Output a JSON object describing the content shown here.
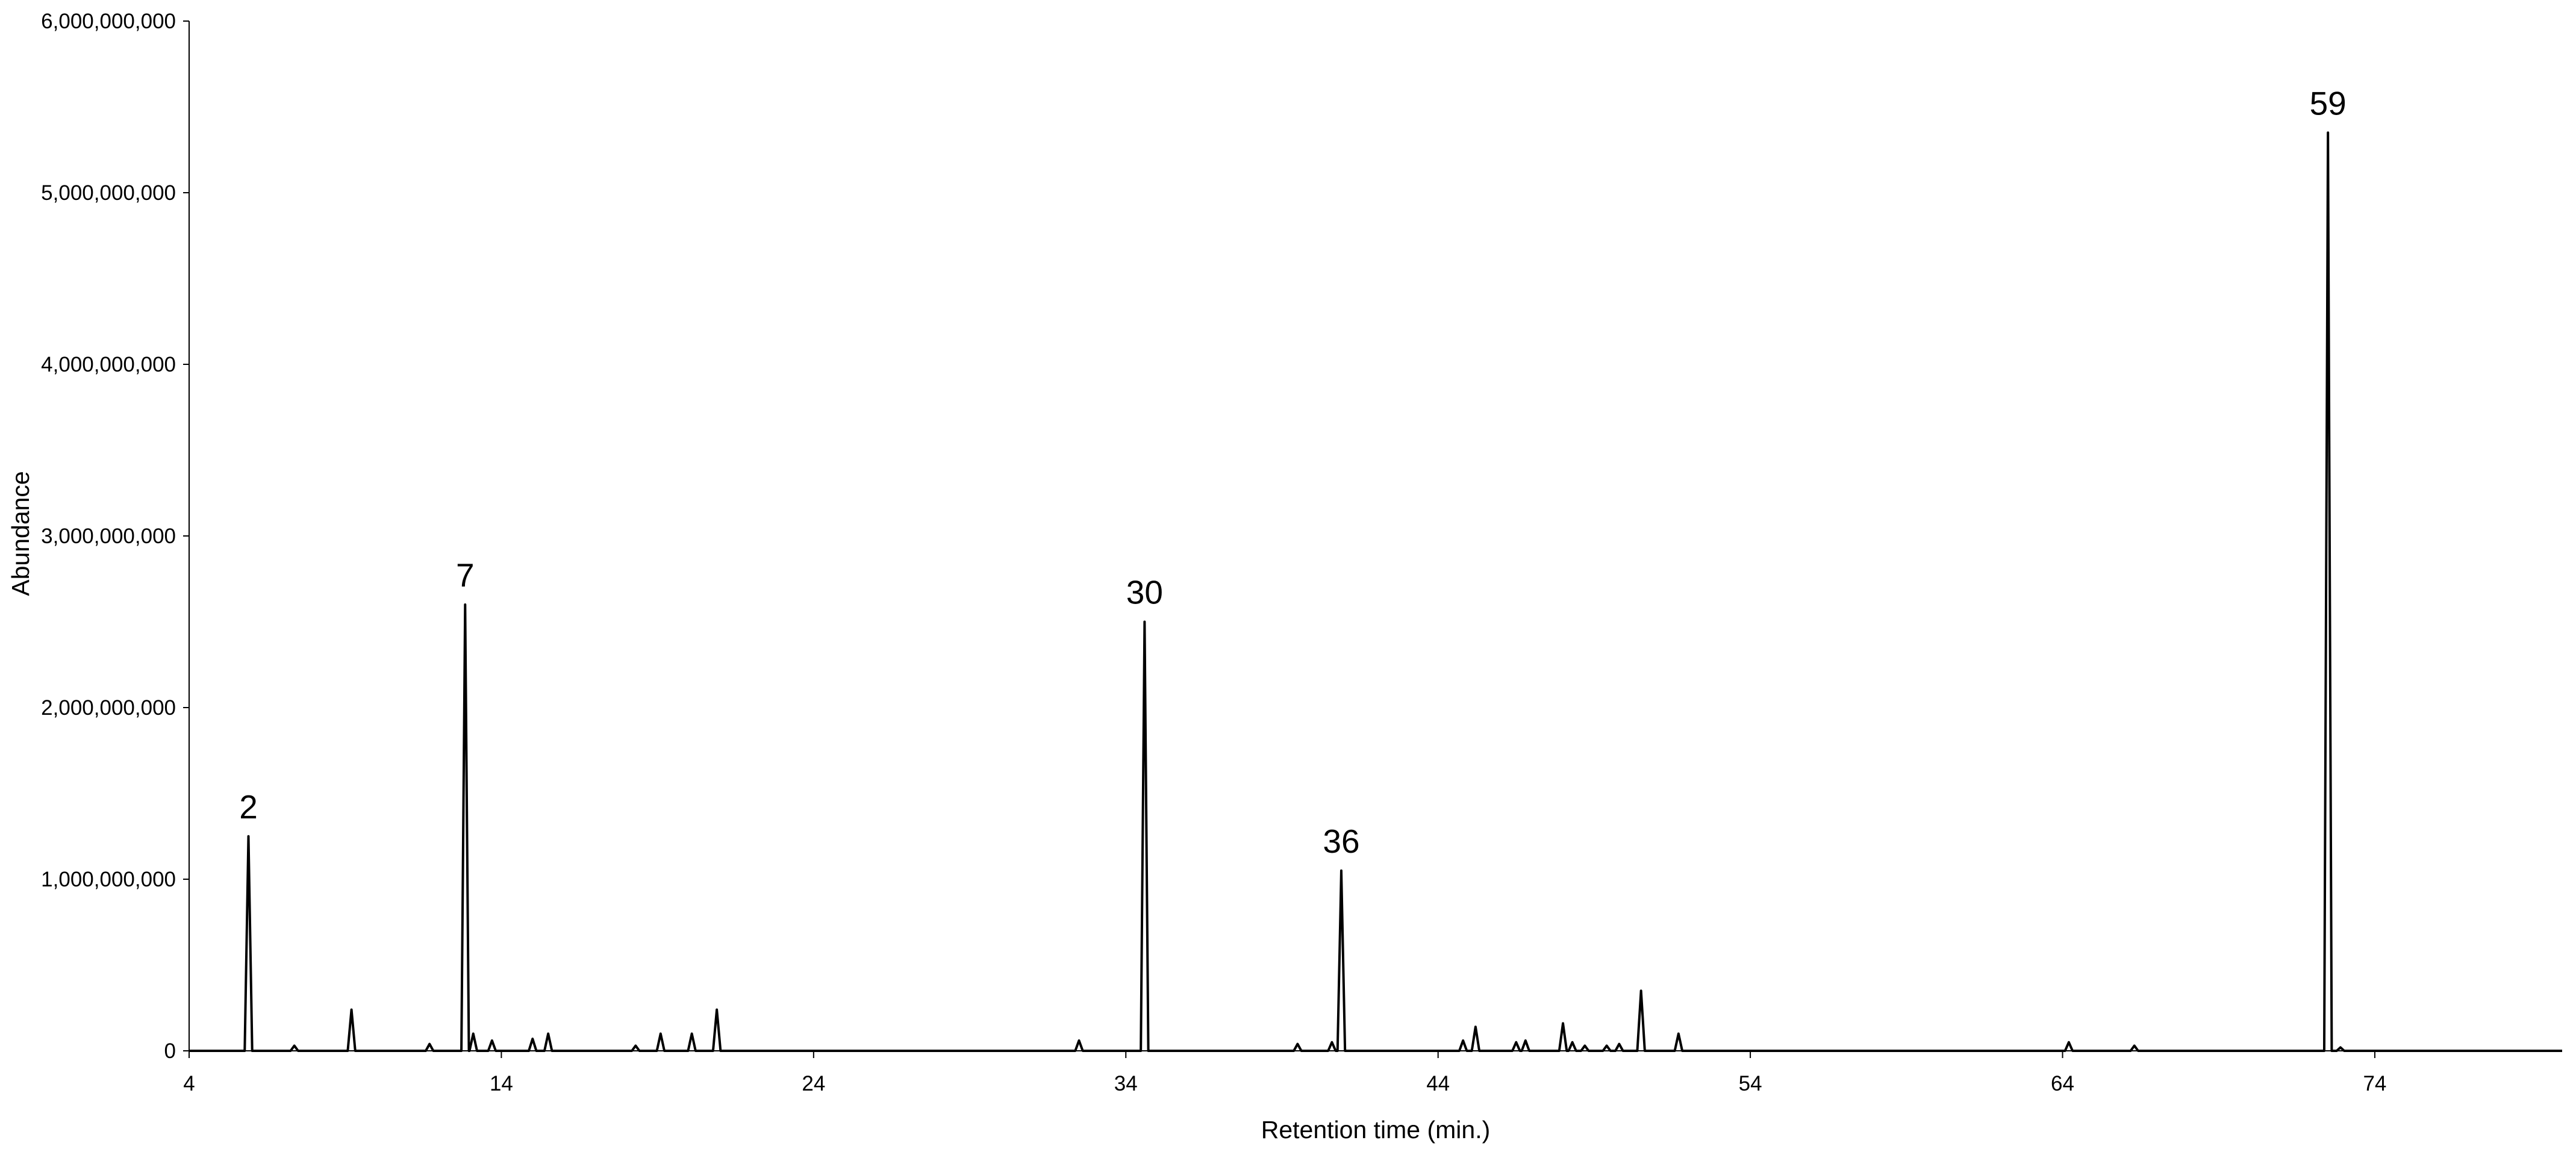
{
  "chart_data": {
    "type": "line",
    "x_label": "Retention time (min.)",
    "y_label": "Abundance",
    "color": "#000000",
    "grid": false,
    "xlim": [
      4,
      80
    ],
    "xticks": [
      4,
      14,
      24,
      34,
      44,
      54,
      64,
      74
    ],
    "ylim": [
      0,
      6000000000
    ],
    "yticks": [
      0,
      {
        "value": 1000000000,
        "label": "1,000,000,000"
      },
      {
        "value": 2000000000,
        "label": "2,000,000,000"
      },
      {
        "value": 3000000000,
        "label": "3,000,000,000"
      },
      {
        "value": 4000000000,
        "label": "4,000,000,000"
      },
      {
        "value": 5000000000,
        "label": "5,000,000,000"
      },
      {
        "value": 6000000000,
        "label": "6,000,000,000"
      }
    ],
    "x": [
      4,
      5.78,
      5.9,
      6.02,
      7.25,
      7.37,
      7.49,
      9.08,
      9.2,
      9.32,
      11.58,
      11.7,
      11.82,
      12.72,
      12.84,
      12.96,
      12.98,
      13.1,
      13.22,
      13.58,
      13.7,
      13.82,
      14.88,
      15,
      15.12,
      15.38,
      15.5,
      15.62,
      18.18,
      18.3,
      18.42,
      18.98,
      19.1,
      19.22,
      19.98,
      20.1,
      20.22,
      20.78,
      20.9,
      21.02,
      32.38,
      32.5,
      32.62,
      34.48,
      34.6,
      34.72,
      39.38,
      39.5,
      39.62,
      40.48,
      40.6,
      40.72,
      40.78,
      40.9,
      41.02,
      44.68,
      44.8,
      44.92,
      45.08,
      45.2,
      45.32,
      46.38,
      46.5,
      46.62,
      46.68,
      46.8,
      46.92,
      47.88,
      48,
      48.12,
      48.18,
      48.3,
      48.42,
      48.58,
      48.7,
      48.82,
      49.28,
      49.4,
      49.52,
      49.68,
      49.8,
      49.92,
      50.38,
      50.5,
      50.62,
      51.58,
      51.7,
      51.82,
      64.08,
      64.2,
      64.32,
      66.18,
      66.3,
      66.42,
      72.38,
      72.5,
      72.62,
      72.78,
      72.9,
      73.02,
      80
    ],
    "values": [
      0,
      0,
      1250000000,
      0,
      0,
      30000000,
      0,
      0,
      240000000,
      0,
      0,
      40000000,
      0,
      0,
      2600000000,
      0,
      0,
      100000000,
      0,
      0,
      60000000,
      0,
      0,
      70000000,
      0,
      0,
      100000000,
      0,
      0,
      30000000,
      0,
      0,
      100000000,
      0,
      0,
      100000000,
      0,
      0,
      240000000,
      0,
      0,
      60000000,
      0,
      0,
      2500000000,
      0,
      0,
      40000000,
      0,
      0,
      50000000,
      0,
      0,
      1050000000,
      0,
      0,
      60000000,
      0,
      0,
      140000000,
      0,
      0,
      50000000,
      0,
      0,
      60000000,
      0,
      0,
      160000000,
      0,
      0,
      50000000,
      0,
      0,
      30000000,
      0,
      0,
      30000000,
      0,
      0,
      40000000,
      0,
      0,
      350000000,
      0,
      0,
      100000000,
      0,
      0,
      50000000,
      0,
      0,
      30000000,
      0,
      0,
      5350000000,
      0,
      0,
      20000000,
      0,
      0
    ],
    "annotations": [
      {
        "text": "2",
        "x": 5.9
      },
      {
        "text": "7",
        "x": 12.84
      },
      {
        "text": "30",
        "x": 34.6
      },
      {
        "text": "36",
        "x": 40.9
      },
      {
        "text": "59",
        "x": 72.5
      }
    ]
  }
}
